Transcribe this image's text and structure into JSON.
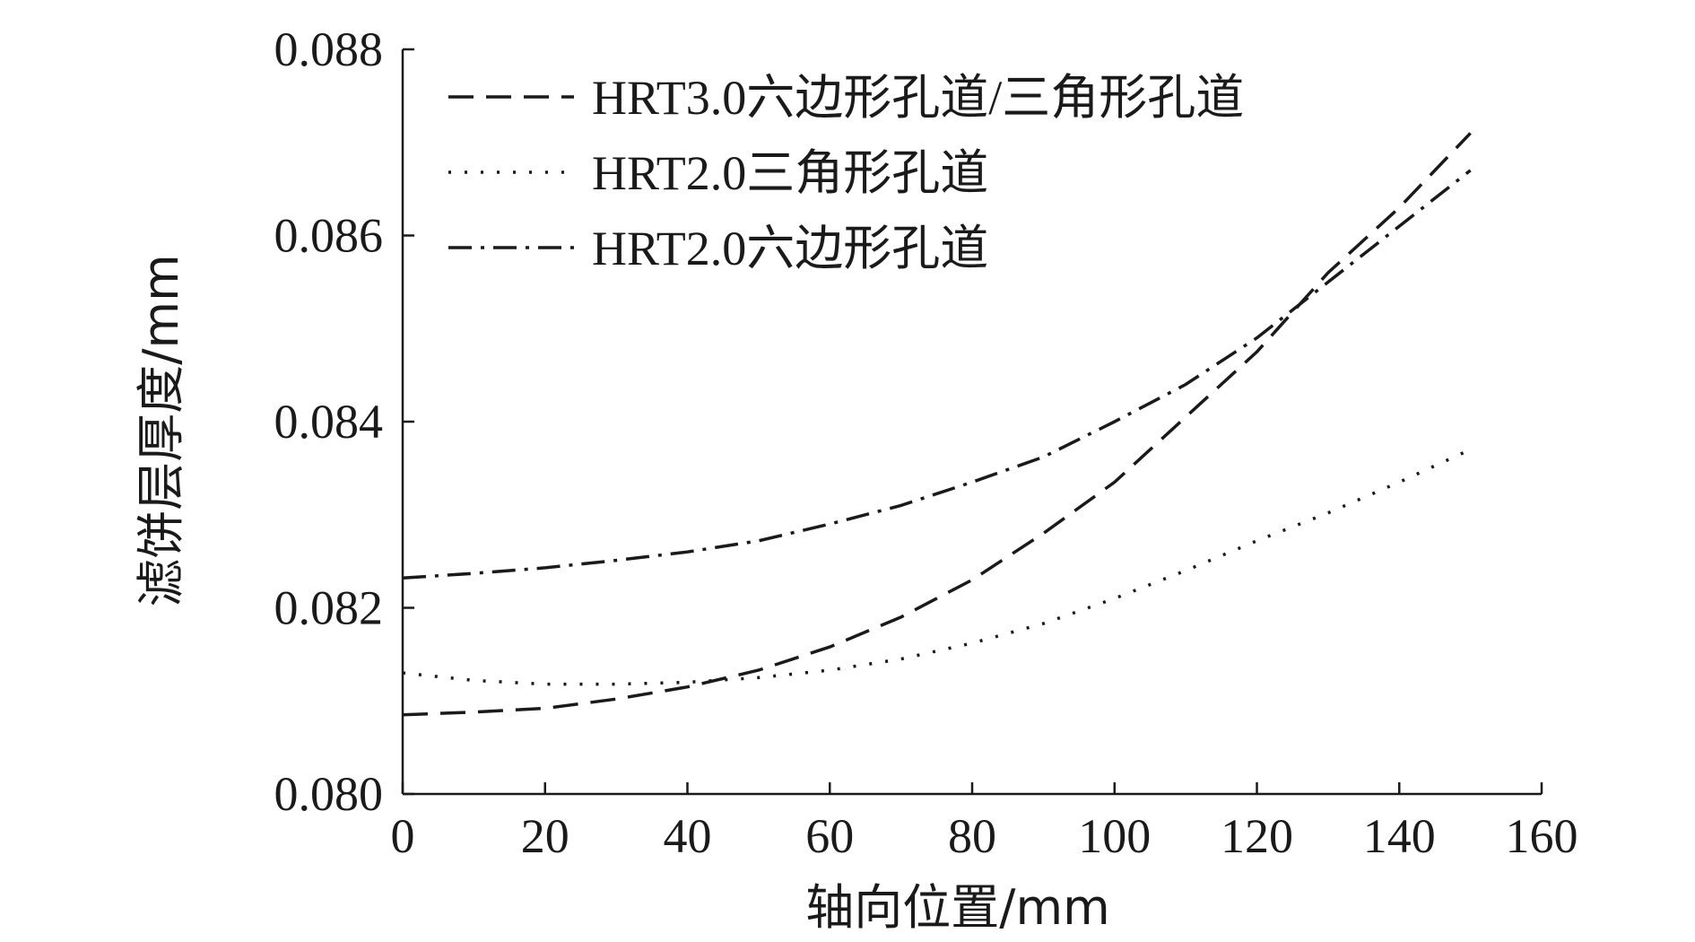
{
  "chart_data": {
    "type": "line",
    "xlabel": "轴向位置/mm",
    "ylabel": "滤饼层厚度/mm",
    "xlim": [
      0,
      160
    ],
    "ylim": [
      0.08,
      0.088
    ],
    "xticks": [
      0,
      20,
      40,
      60,
      80,
      100,
      120,
      140,
      160
    ],
    "xtick_labels": [
      "0",
      "20",
      "40",
      "60",
      "80",
      "100",
      "120",
      "140",
      "160"
    ],
    "yticks": [
      0.08,
      0.082,
      0.084,
      0.086,
      0.088
    ],
    "ytick_labels": [
      "0.080",
      "0.082",
      "0.084",
      "0.086",
      "0.088"
    ],
    "grid": false,
    "legend_position": "top-left",
    "series": [
      {
        "name": "HRT3.0六边形孔道/三角形孔道",
        "style": "dashed",
        "color": "#1a1a1a",
        "x": [
          0,
          10,
          20,
          30,
          40,
          50,
          60,
          70,
          80,
          90,
          100,
          110,
          120,
          130,
          140,
          150
        ],
        "y": [
          0.08085,
          0.08088,
          0.08092,
          0.08102,
          0.08115,
          0.08133,
          0.08158,
          0.0819,
          0.0823,
          0.0828,
          0.08335,
          0.08405,
          0.08475,
          0.0856,
          0.0863,
          0.0871
        ]
      },
      {
        "name": "HRT2.0三角形孔道",
        "style": "dotted",
        "color": "#1a1a1a",
        "x": [
          0,
          10,
          20,
          30,
          40,
          50,
          60,
          70,
          80,
          90,
          100,
          110,
          120,
          130,
          140,
          150
        ],
        "y": [
          0.0813,
          0.08122,
          0.08118,
          0.08118,
          0.0812,
          0.08125,
          0.08133,
          0.08145,
          0.08162,
          0.08183,
          0.0821,
          0.0824,
          0.08272,
          0.08302,
          0.08335,
          0.0837
        ]
      },
      {
        "name": "HRT2.0六边形孔道",
        "style": "dashdot",
        "color": "#1a1a1a",
        "x": [
          0,
          10,
          20,
          30,
          40,
          50,
          60,
          70,
          80,
          90,
          100,
          110,
          120,
          130,
          140,
          150
        ],
        "y": [
          0.08232,
          0.08237,
          0.08243,
          0.08251,
          0.0826,
          0.08272,
          0.0829,
          0.0831,
          0.08335,
          0.08362,
          0.084,
          0.0844,
          0.0849,
          0.0855,
          0.0861,
          0.0867
        ]
      }
    ]
  }
}
